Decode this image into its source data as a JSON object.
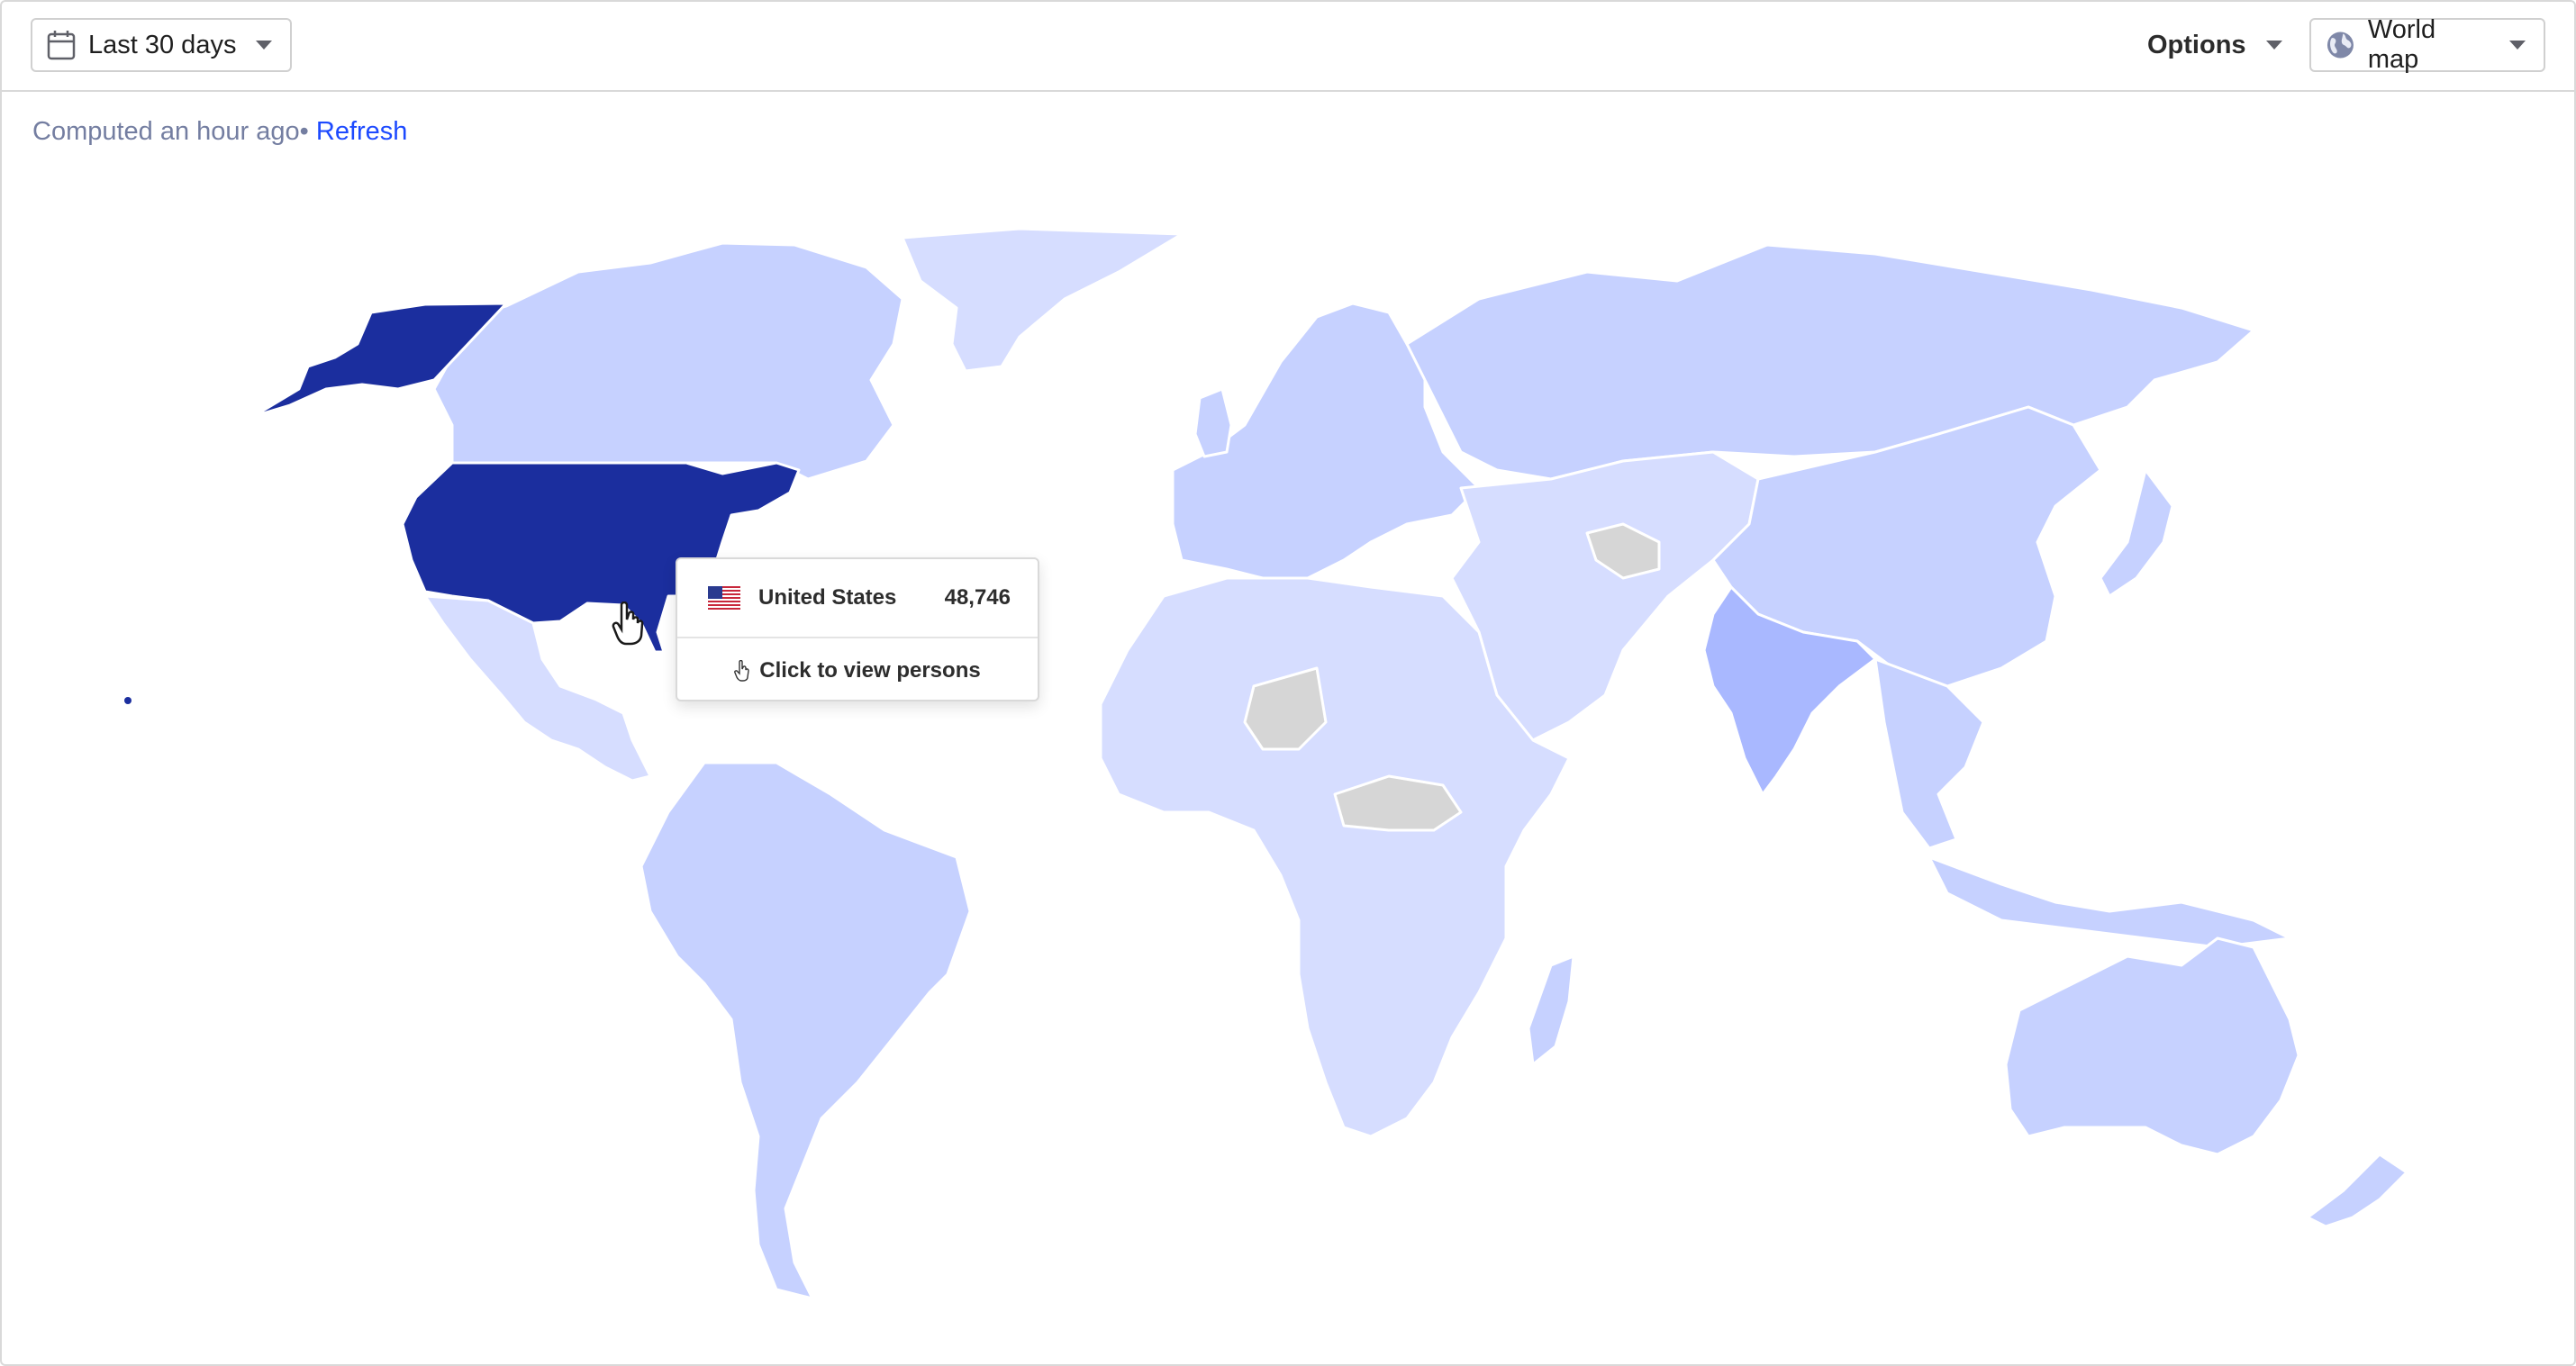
{
  "toolbar": {
    "date_range_label": "Last 30 days",
    "options_label": "Options",
    "view_label": "World map"
  },
  "status": {
    "computed_text": "Computed an hour ago",
    "separator": "•",
    "refresh_label": "Refresh"
  },
  "tooltip": {
    "country": "United States",
    "value": "48,746",
    "action_label": "Click to view persons"
  },
  "colors": {
    "accent": "#1d4aff",
    "highest": "#1b2e9e",
    "high": "#a9b8ff",
    "mid": "#c6d1ff",
    "low": "#d6ddff",
    "no_data": "#d6d6d6"
  },
  "map_data": {
    "type": "choropleth",
    "highlighted_country": "United States",
    "highlighted_value": 48746
  }
}
